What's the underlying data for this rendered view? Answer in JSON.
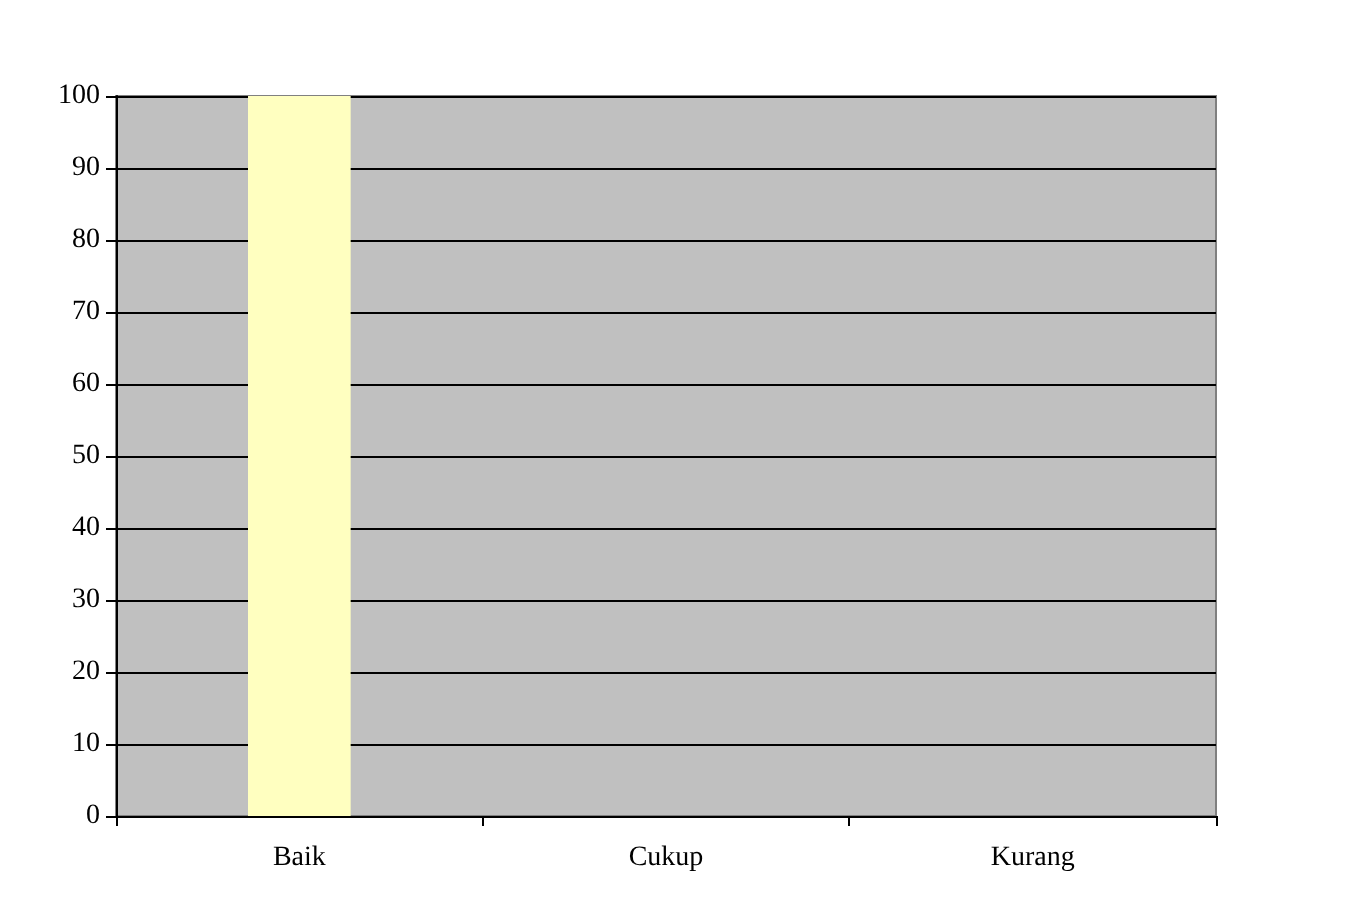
{
  "chart_data": {
    "type": "bar",
    "categories": [
      "Baik",
      "Cukup",
      "Kurang"
    ],
    "series": [
      {
        "color": "#ffffc0",
        "values": [
          100,
          0,
          0
        ]
      }
    ],
    "ylim": [
      0,
      100
    ],
    "yticks": [
      0,
      10,
      20,
      30,
      40,
      50,
      60,
      70,
      80,
      90,
      100
    ],
    "grid": "y"
  }
}
